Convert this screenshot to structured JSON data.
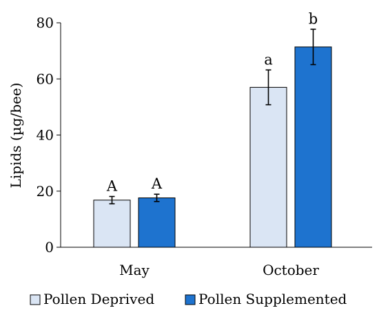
{
  "chart_data": {
    "type": "bar",
    "title": "",
    "xlabel": "",
    "ylabel": "Lipids (µg/bee)",
    "ylim": [
      0,
      80
    ],
    "yticks": [
      0,
      20,
      40,
      60,
      80
    ],
    "grid": false,
    "legend_position": "bottom",
    "categories": [
      "May",
      "October"
    ],
    "series": [
      {
        "name": "Pollen Deprived",
        "color": "#dae5f4",
        "values": [
          16.8,
          57.0
        ],
        "error": [
          1.3,
          6.2
        ],
        "significance": [
          "A",
          "a"
        ]
      },
      {
        "name": "Pollen Supplemented",
        "color": "#1e73cf",
        "values": [
          17.6,
          71.4
        ],
        "error": [
          1.3,
          6.3
        ],
        "significance": [
          "A",
          "b"
        ]
      }
    ]
  }
}
